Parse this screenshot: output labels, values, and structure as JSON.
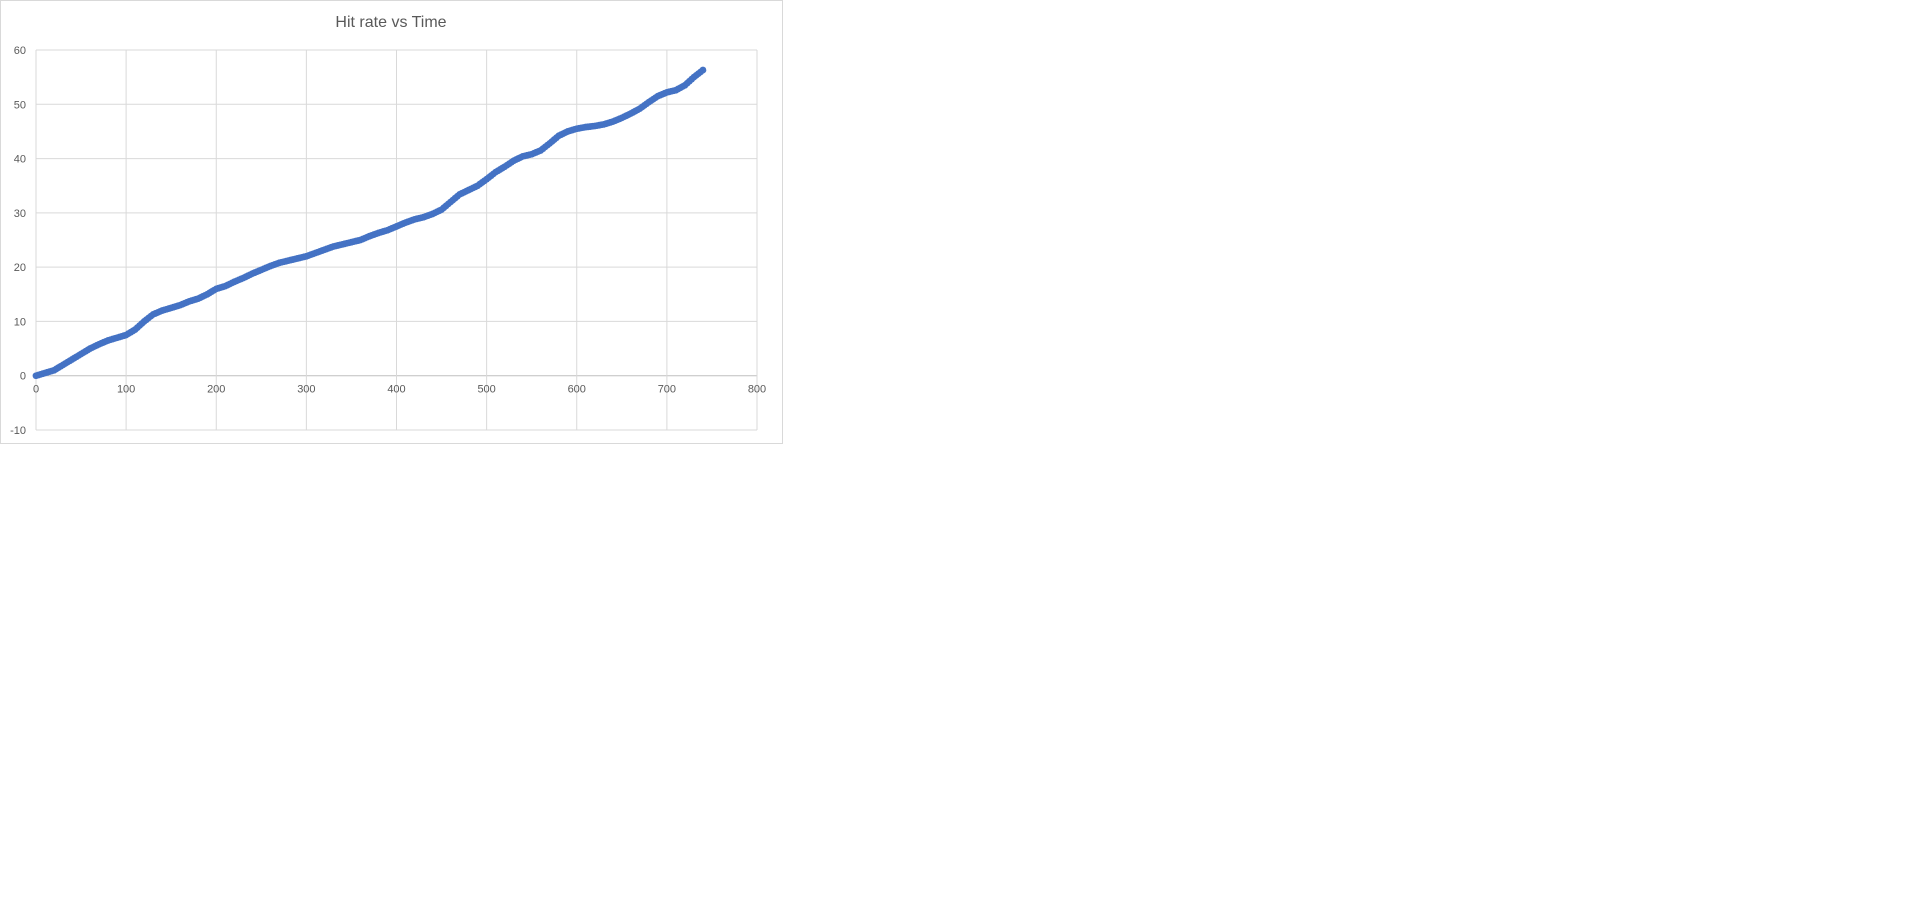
{
  "chart_data": {
    "type": "scatter",
    "title": "Hit rate vs Time",
    "xlabel": "",
    "ylabel": "",
    "xlim": [
      0,
      800
    ],
    "ylim": [
      -10,
      60
    ],
    "x_ticks": [
      0,
      100,
      200,
      300,
      400,
      500,
      600,
      700,
      800
    ],
    "y_ticks": [
      -10,
      0,
      10,
      20,
      30,
      40,
      50,
      60
    ],
    "grid": true,
    "legend": "none",
    "series": [
      {
        "color": "#4472C4",
        "points": [
          [
            0,
            0
          ],
          [
            10,
            0.5
          ],
          [
            20,
            1
          ],
          [
            30,
            2
          ],
          [
            40,
            3
          ],
          [
            50,
            4
          ],
          [
            60,
            5
          ],
          [
            70,
            5.8
          ],
          [
            80,
            6.5
          ],
          [
            90,
            7
          ],
          [
            100,
            7.5
          ],
          [
            110,
            8.5
          ],
          [
            120,
            10
          ],
          [
            130,
            11.3
          ],
          [
            140,
            12
          ],
          [
            150,
            12.5
          ],
          [
            160,
            13
          ],
          [
            170,
            13.7
          ],
          [
            180,
            14.2
          ],
          [
            190,
            15
          ],
          [
            200,
            16
          ],
          [
            210,
            16.5
          ],
          [
            220,
            17.3
          ],
          [
            230,
            18
          ],
          [
            240,
            18.8
          ],
          [
            250,
            19.5
          ],
          [
            260,
            20.2
          ],
          [
            270,
            20.8
          ],
          [
            280,
            21.2
          ],
          [
            290,
            21.6
          ],
          [
            300,
            22
          ],
          [
            310,
            22.6
          ],
          [
            320,
            23.2
          ],
          [
            330,
            23.8
          ],
          [
            340,
            24.2
          ],
          [
            350,
            24.6
          ],
          [
            360,
            25
          ],
          [
            370,
            25.7
          ],
          [
            380,
            26.3
          ],
          [
            390,
            26.8
          ],
          [
            400,
            27.5
          ],
          [
            410,
            28.2
          ],
          [
            420,
            28.8
          ],
          [
            430,
            29.2
          ],
          [
            440,
            29.8
          ],
          [
            450,
            30.6
          ],
          [
            460,
            32
          ],
          [
            470,
            33.4
          ],
          [
            480,
            34.2
          ],
          [
            490,
            35
          ],
          [
            500,
            36.2
          ],
          [
            510,
            37.5
          ],
          [
            520,
            38.5
          ],
          [
            530,
            39.6
          ],
          [
            540,
            40.4
          ],
          [
            550,
            40.8
          ],
          [
            560,
            41.5
          ],
          [
            570,
            42.8
          ],
          [
            580,
            44.2
          ],
          [
            590,
            45
          ],
          [
            600,
            45.5
          ],
          [
            610,
            45.8
          ],
          [
            620,
            46
          ],
          [
            630,
            46.3
          ],
          [
            640,
            46.8
          ],
          [
            650,
            47.5
          ],
          [
            660,
            48.3
          ],
          [
            670,
            49.2
          ],
          [
            680,
            50.4
          ],
          [
            690,
            51.5
          ],
          [
            700,
            52.2
          ],
          [
            710,
            52.6
          ],
          [
            720,
            53.5
          ],
          [
            730,
            55
          ],
          [
            740,
            56.3
          ]
        ]
      }
    ]
  }
}
